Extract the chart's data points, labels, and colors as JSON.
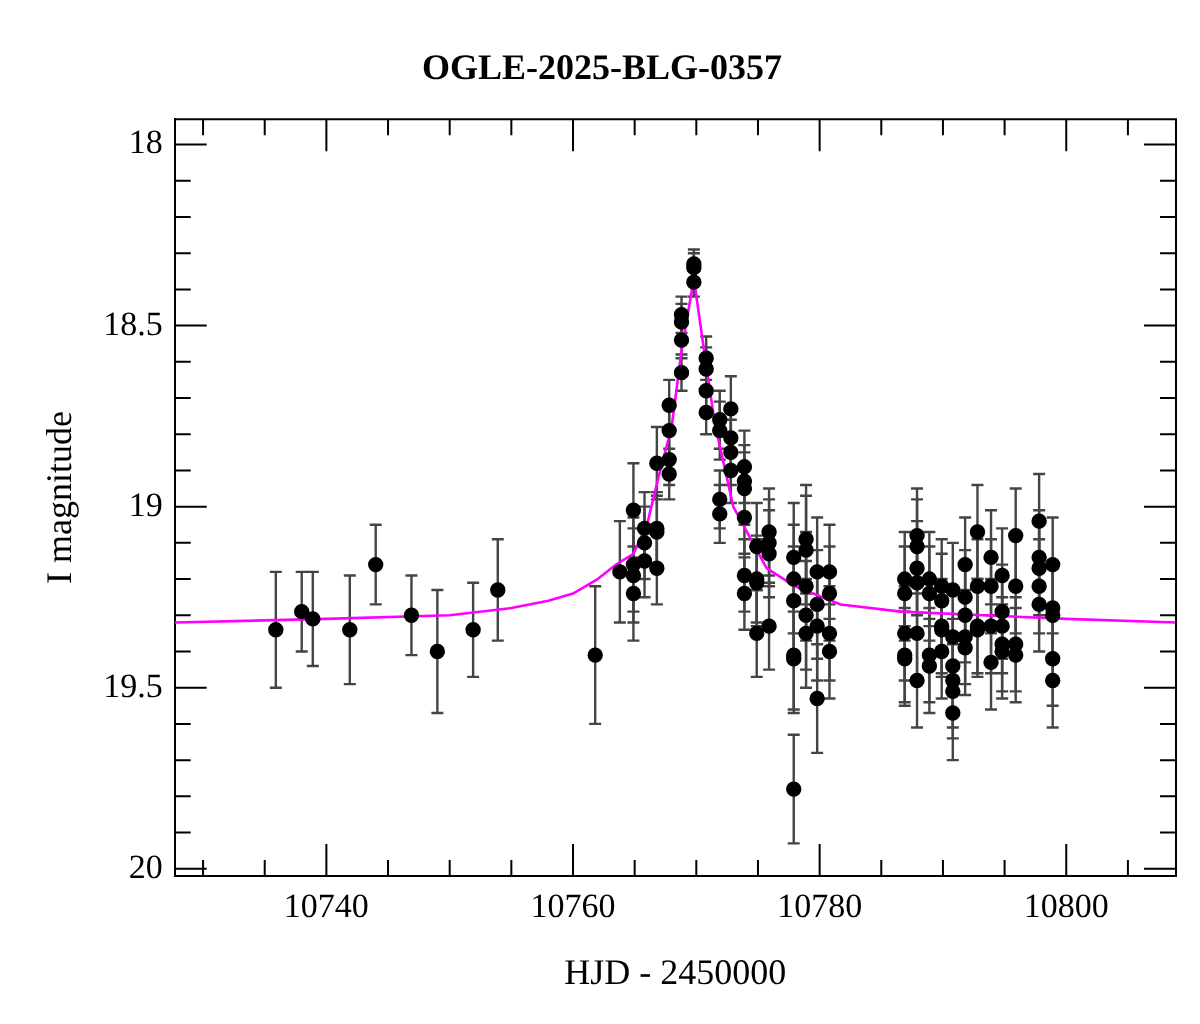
{
  "chart_data": {
    "type": "scatter",
    "title": "OGLE-2025-BLG-0357",
    "xlabel": "HJD - 2450000",
    "ylabel": "I magnitude",
    "xlim": [
      10727.7,
      10808.9
    ],
    "ylim": [
      20.02,
      17.93
    ],
    "xticks": [
      {
        "value": 10730,
        "label": null
      },
      {
        "value": 10735,
        "label": null
      },
      10740,
      {
        "value": 10745,
        "label": null
      },
      {
        "value": 10750,
        "label": null
      },
      {
        "value": 10755,
        "label": null
      },
      10760,
      {
        "value": 10765,
        "label": null
      },
      {
        "value": 10770,
        "label": null
      },
      {
        "value": 10775,
        "label": null
      },
      10780,
      {
        "value": 10785,
        "label": null
      },
      {
        "value": 10790,
        "label": null
      },
      {
        "value": 10795,
        "label": null
      },
      10800,
      {
        "value": 10805,
        "label": null
      }
    ],
    "yticks": [
      18,
      {
        "value": 18.1,
        "label": null
      },
      {
        "value": 18.2,
        "label": null
      },
      {
        "value": 18.3,
        "label": null
      },
      {
        "value": 18.4,
        "label": null
      },
      18.5,
      {
        "value": 18.6,
        "label": null
      },
      {
        "value": 18.7,
        "label": null
      },
      {
        "value": 18.8,
        "label": null
      },
      {
        "value": 18.9,
        "label": null
      },
      19,
      {
        "value": 19.1,
        "label": null
      },
      {
        "value": 19.2,
        "label": null
      },
      {
        "value": 19.3,
        "label": null
      },
      {
        "value": 19.4,
        "label": null
      },
      19.5,
      {
        "value": 19.6,
        "label": null
      },
      {
        "value": 19.7,
        "label": null
      },
      {
        "value": 19.8,
        "label": null
      },
      {
        "value": 19.9,
        "label": null
      },
      20
    ],
    "grid": false,
    "legend": false,
    "series": [
      {
        "type": "scatter",
        "color": "#000000",
        "marker": "circle",
        "x": [
          10735.9,
          10738.0,
          10738.9,
          10741.9,
          10744.0,
          10746.9,
          10749.0,
          10751.9,
          10753.9,
          10761.8,
          10763.8,
          10764.9,
          10764.9,
          10764.9,
          10764.9,
          10765.8,
          10765.8,
          10765.8,
          10766.8,
          10766.8,
          10766.8,
          10766.8,
          10767.8,
          10767.8,
          10767.8,
          10767.8,
          10768.8,
          10768.8,
          10768.8,
          10768.8,
          10769.8,
          10769.8,
          10769.8,
          10770.8,
          10770.8,
          10770.8,
          10770.8,
          10771.9,
          10771.9,
          10771.9,
          10771.9,
          10772.8,
          10772.8,
          10772.8,
          10772.8,
          10773.9,
          10773.9,
          10773.9,
          10773.9,
          10773.9,
          10773.9,
          10774.9,
          10774.9,
          10774.9,
          10774.9,
          10775.9,
          10775.9,
          10775.9,
          10775.9,
          10777.9,
          10777.9,
          10777.9,
          10777.9,
          10777.9,
          10777.9,
          10778.9,
          10778.9,
          10778.9,
          10778.9,
          10778.9,
          10779.8,
          10779.8,
          10779.8,
          10779.8,
          10780.8,
          10780.8,
          10780.8,
          10780.8,
          10786.9,
          10786.9,
          10786.9,
          10786.9,
          10786.9,
          10787.9,
          10787.9,
          10787.9,
          10787.9,
          10787.9,
          10787.9,
          10788.9,
          10788.9,
          10788.9,
          10788.9,
          10789.9,
          10789.9,
          10789.9,
          10789.9,
          10789.9,
          10790.8,
          10790.8,
          10790.8,
          10790.8,
          10790.8,
          10790.8,
          10791.8,
          10791.8,
          10791.8,
          10791.8,
          10791.8,
          10792.8,
          10792.8,
          10792.8,
          10792.8,
          10793.9,
          10793.9,
          10793.9,
          10793.9,
          10794.8,
          10794.8,
          10794.8,
          10794.8,
          10794.8,
          10795.9,
          10795.9,
          10795.9,
          10795.9,
          10797.8,
          10797.8,
          10797.8,
          10797.8,
          10797.8,
          10798.9,
          10798.9,
          10798.9,
          10798.9,
          10798.9
        ],
        "values": [
          19.34,
          19.29,
          19.31,
          19.34,
          19.16,
          19.3,
          19.4,
          19.34,
          19.23,
          19.41,
          19.18,
          19.01,
          19.16,
          19.19,
          19.24,
          19.06,
          19.1,
          19.15,
          18.88,
          19.06,
          19.07,
          19.17,
          18.72,
          18.79,
          18.87,
          18.91,
          18.47,
          18.49,
          18.54,
          18.63,
          18.33,
          18.34,
          18.38,
          18.59,
          18.62,
          18.68,
          18.74,
          18.76,
          18.79,
          18.98,
          19.02,
          18.73,
          18.81,
          18.85,
          18.9,
          18.89,
          18.93,
          18.95,
          19.03,
          19.19,
          19.24,
          19.11,
          19.2,
          19.21,
          19.35,
          19.07,
          19.1,
          19.13,
          19.33,
          19.14,
          19.2,
          19.26,
          19.41,
          19.42,
          19.78,
          19.09,
          19.12,
          19.22,
          19.3,
          19.35,
          19.18,
          19.27,
          19.33,
          19.53,
          19.18,
          19.24,
          19.35,
          19.4,
          19.2,
          19.24,
          19.35,
          19.41,
          19.42,
          19.08,
          19.11,
          19.17,
          19.21,
          19.35,
          19.48,
          19.2,
          19.24,
          19.41,
          19.44,
          19.22,
          19.26,
          19.33,
          19.34,
          19.4,
          19.23,
          19.36,
          19.44,
          19.48,
          19.51,
          19.57,
          19.16,
          19.25,
          19.3,
          19.36,
          19.39,
          19.07,
          19.22,
          19.33,
          19.34,
          19.14,
          19.22,
          19.33,
          19.43,
          19.19,
          19.29,
          19.33,
          19.38,
          19.4,
          19.08,
          19.22,
          19.38,
          19.41,
          19.04,
          19.14,
          19.17,
          19.22,
          19.27,
          19.16,
          19.28,
          19.3,
          19.42,
          19.48
        ],
        "errors": [
          0.16,
          0.11,
          0.13,
          0.15,
          0.11,
          0.11,
          0.17,
          0.13,
          0.14,
          0.19,
          0.14,
          0.13,
          0.13,
          0.13,
          0.13,
          0.1,
          0.1,
          0.1,
          0.1,
          0.1,
          0.1,
          0.1,
          0.07,
          0.07,
          0.07,
          0.07,
          0.05,
          0.05,
          0.05,
          0.05,
          0.04,
          0.04,
          0.04,
          0.06,
          0.06,
          0.06,
          0.06,
          0.08,
          0.08,
          0.08,
          0.08,
          0.09,
          0.09,
          0.09,
          0.09,
          0.1,
          0.1,
          0.1,
          0.1,
          0.1,
          0.1,
          0.12,
          0.12,
          0.12,
          0.12,
          0.12,
          0.12,
          0.12,
          0.12,
          0.15,
          0.15,
          0.15,
          0.15,
          0.15,
          0.15,
          0.15,
          0.15,
          0.15,
          0.15,
          0.15,
          0.15,
          0.15,
          0.15,
          0.15,
          0.13,
          0.13,
          0.13,
          0.13,
          0.13,
          0.13,
          0.13,
          0.13,
          0.13,
          0.13,
          0.13,
          0.13,
          0.13,
          0.13,
          0.13,
          0.13,
          0.13,
          0.13,
          0.13,
          0.13,
          0.13,
          0.13,
          0.13,
          0.13,
          0.13,
          0.13,
          0.13,
          0.13,
          0.13,
          0.13,
          0.13,
          0.13,
          0.13,
          0.13,
          0.13,
          0.13,
          0.13,
          0.13,
          0.13,
          0.13,
          0.13,
          0.13,
          0.13,
          0.13,
          0.13,
          0.13,
          0.13,
          0.13,
          0.13,
          0.13,
          0.13,
          0.13,
          0.13,
          0.13,
          0.13,
          0.13,
          0.13,
          0.13,
          0.13,
          0.13,
          0.13,
          0.13
        ]
      },
      {
        "type": "line",
        "color": "#ff00ff",
        "marker": "none",
        "x": [
          10727.7,
          10740,
          10750,
          10755,
          10758,
          10760,
          10762,
          10763.5,
          10764.9,
          10766,
          10767,
          10768,
          10768.8,
          10769.8,
          10770.8,
          10771.5,
          10773,
          10775.7,
          10778,
          10781.7,
          10786.6,
          10800,
          10808.9
        ],
        "values": [
          19.32,
          19.31,
          19.3,
          19.28,
          19.26,
          19.24,
          19.2,
          19.16,
          19.13,
          19.05,
          18.91,
          18.78,
          18.57,
          18.37,
          18.61,
          18.77,
          19.0,
          19.17,
          19.22,
          19.27,
          19.29,
          19.31,
          19.32
        ]
      }
    ]
  }
}
